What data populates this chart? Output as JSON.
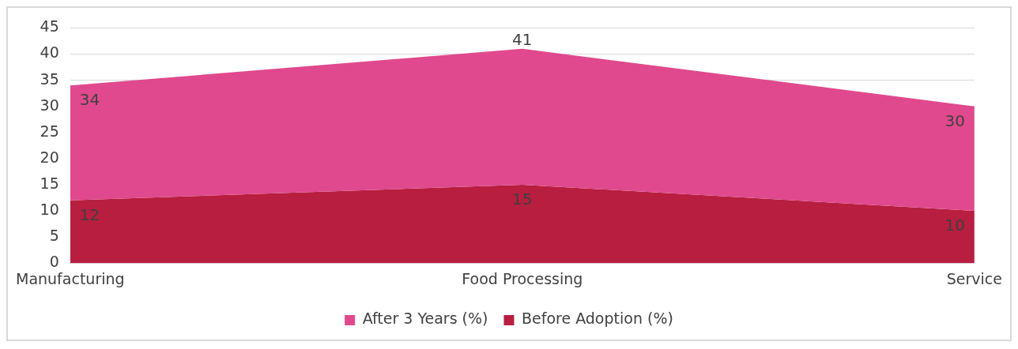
{
  "chart_data": {
    "type": "area",
    "categories": [
      "Manufacturing",
      "Food Processing",
      "Service"
    ],
    "series": [
      {
        "name": "After 3 Years (%)",
        "color": "#e0498d",
        "values": [
          34,
          41,
          30
        ]
      },
      {
        "name": "Before Adoption (%)",
        "color": "#b81e3f",
        "values": [
          12,
          15,
          10
        ]
      }
    ],
    "ylim": [
      0,
      45
    ],
    "yticks": [
      0,
      5,
      10,
      15,
      20,
      25,
      30,
      35,
      40,
      45
    ],
    "grid": "y",
    "legend": "bottom",
    "data_labels": true
  }
}
